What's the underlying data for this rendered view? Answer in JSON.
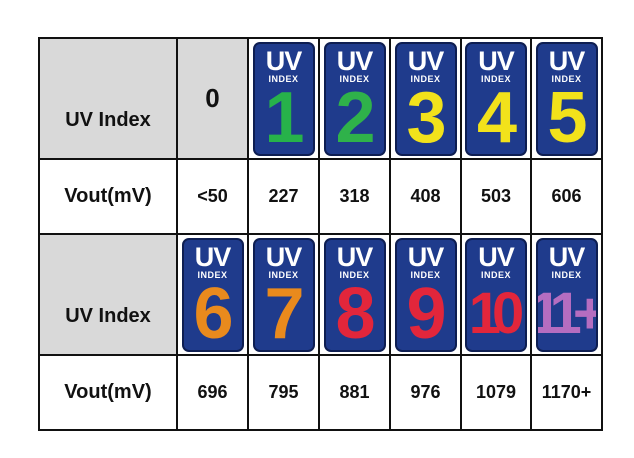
{
  "row_labels": {
    "uv_index": "UV Index",
    "vout": "Vout(mV)"
  },
  "badge_text": {
    "uv": "UV",
    "index": "INDEX"
  },
  "row1": {
    "zero": "0",
    "badges": [
      {
        "number": "1",
        "color": "#27b24a"
      },
      {
        "number": "2",
        "color": "#2fb24a"
      },
      {
        "number": "3",
        "color": "#f2e21b"
      },
      {
        "number": "4",
        "color": "#f2e21b"
      },
      {
        "number": "5",
        "color": "#f2e21b"
      }
    ],
    "vout": [
      "<50",
      "227",
      "318",
      "408",
      "503",
      "606"
    ]
  },
  "row2": {
    "badges": [
      {
        "number": "6",
        "color": "#e98a1d"
      },
      {
        "number": "7",
        "color": "#e98a1d"
      },
      {
        "number": "8",
        "color": "#e2263b"
      },
      {
        "number": "9",
        "color": "#e2263b"
      },
      {
        "number": "10",
        "color": "#e2263b"
      },
      {
        "number": "11+",
        "color": "#b56dc0"
      }
    ],
    "vout": [
      "696",
      "795",
      "881",
      "976",
      "1079",
      "1170+"
    ]
  }
}
